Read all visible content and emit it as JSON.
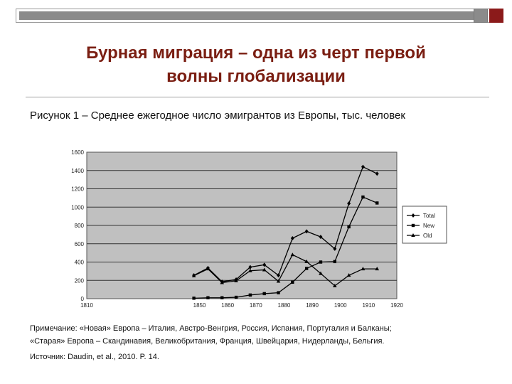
{
  "slide": {
    "title": "Бурная миграция – одна  из черт первой\nволны глобализации",
    "caption": "Рисунок 1  – Среднее ежегодное число эмигрантов из Европы, тыс. человек",
    "note_line1": "Примечание: «Новая»  Европа  – Италия, Австро-Венгрия, Россия,  Испания, Португалия и Балканы;",
    "note_line2": "«Старая» Европа  – Скандинавия, Великобритания,  Франция, Швейцария, Нидерланды, Бельгия.",
    "source": "Источник: Daudin, et al., 2010. P. 14."
  },
  "colors": {
    "title": "#7a1e12",
    "accent_dark_red": "#8b1a1a",
    "deco_gray": "#8b8b8b",
    "plot_background": "#c0c0c0",
    "series_line": "#000000"
  },
  "chart_data": {
    "type": "line",
    "title": "",
    "xlabel": "",
    "ylabel": "",
    "xlim": [
      1810,
      1920
    ],
    "ylim": [
      0,
      1600
    ],
    "x_ticks": [
      "1810",
      "1850",
      "1860",
      "1870",
      "1880",
      "1890",
      "1900",
      "1910",
      "1920"
    ],
    "y_ticks": [
      "0",
      "200",
      "400",
      "600",
      "800",
      "1000",
      "1200",
      "1400",
      "1600"
    ],
    "grid": "horizontal",
    "legend_position": "right",
    "x": [
      1848,
      1853,
      1858,
      1863,
      1868,
      1873,
      1878,
      1883,
      1888,
      1893,
      1898,
      1903,
      1908,
      1913
    ],
    "series": [
      {
        "name": "Total",
        "marker": "diamond",
        "values": [
          255,
          335,
          185,
          210,
          345,
          370,
          255,
          660,
          735,
          675,
          545,
          1040,
          1440,
          1365
        ]
      },
      {
        "name": "New",
        "marker": "square",
        "values": [
          5,
          10,
          10,
          15,
          40,
          55,
          65,
          180,
          330,
          400,
          405,
          785,
          1110,
          1045
        ]
      },
      {
        "name": "Old",
        "marker": "triangle",
        "values": [
          250,
          325,
          175,
          195,
          305,
          315,
          190,
          480,
          405,
          275,
          140,
          255,
          325,
          325
        ]
      }
    ]
  }
}
